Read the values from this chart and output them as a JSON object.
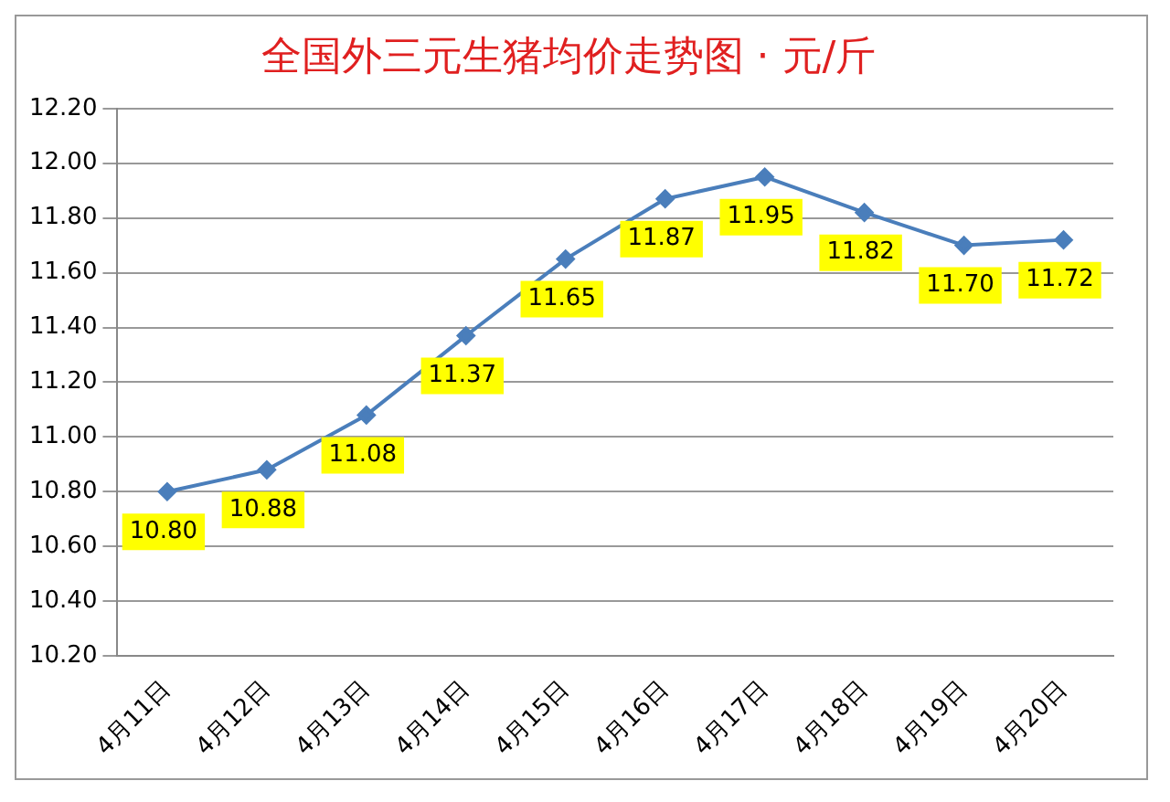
{
  "chart_data": {
    "type": "line",
    "title": "全国外三元生猪均价走势图 · 元/斤",
    "categories": [
      "4月11日",
      "4月12日",
      "4月13日",
      "4月14日",
      "4月15日",
      "4月16日",
      "4月17日",
      "4月18日",
      "4月19日",
      "4月20日"
    ],
    "series": [
      {
        "color": "#4a7ebb",
        "values": [
          10.8,
          10.88,
          11.08,
          11.37,
          11.65,
          11.87,
          11.95,
          11.82,
          11.7,
          11.72
        ],
        "value_labels": [
          "10.80",
          "10.88",
          "11.08",
          "11.37",
          "11.65",
          "11.87",
          "11.95",
          "11.82",
          "11.70",
          "11.72"
        ]
      }
    ],
    "ylim": [
      10.2,
      12.2
    ],
    "yticks": [
      {
        "value": 10.2,
        "label": "10.20"
      },
      {
        "value": 10.4,
        "label": "10.40"
      },
      {
        "value": 10.6,
        "label": "10.60"
      },
      {
        "value": 10.8,
        "label": "10.80"
      },
      {
        "value": 11.0,
        "label": "11.00"
      },
      {
        "value": 11.2,
        "label": "11.20"
      },
      {
        "value": 11.4,
        "label": "11.40"
      },
      {
        "value": 11.6,
        "label": "11.60"
      },
      {
        "value": 11.8,
        "label": "11.80"
      },
      {
        "value": 12.0,
        "label": "12.00"
      },
      {
        "value": 12.2,
        "label": "12.20"
      }
    ],
    "grid": "y",
    "legend": false,
    "marker": "diamond",
    "line_style": "solid"
  }
}
